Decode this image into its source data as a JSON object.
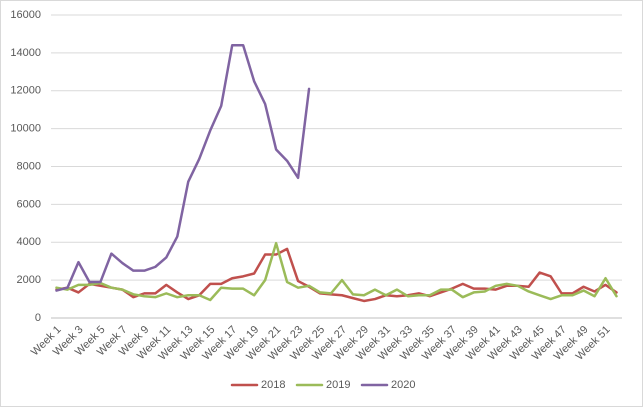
{
  "chart_data": {
    "type": "line",
    "categories": [
      "Week 1",
      null,
      "Week 3",
      null,
      "Week 5",
      null,
      "Week 7",
      null,
      "Week 9",
      null,
      "Week 11",
      null,
      "Week 13",
      null,
      "Week 15",
      null,
      "Week 17",
      null,
      "Week 19",
      null,
      "Week 21",
      null,
      "Week 23",
      null,
      "Week 25",
      null,
      "Week 27",
      null,
      "Week 29",
      null,
      "Week 31",
      null,
      "Week 33",
      null,
      "Week 35",
      null,
      "Week 37",
      null,
      "Week 39",
      null,
      "Week 41",
      null,
      "Week 43",
      null,
      "Week 45",
      null,
      "Week 47",
      null,
      "Week 49",
      null,
      "Week 51",
      null
    ],
    "series": [
      {
        "name": "2018",
        "color": "#c0504d",
        "values": [
          1500,
          1600,
          1350,
          1800,
          1700,
          1600,
          1500,
          1100,
          1300,
          1300,
          1750,
          1350,
          1000,
          1200,
          1800,
          1800,
          2100,
          2200,
          2350,
          3350,
          3350,
          3650,
          1950,
          1650,
          1300,
          1250,
          1200,
          1050,
          900,
          1000,
          1200,
          1150,
          1200,
          1300,
          1150,
          1350,
          1550,
          1800,
          1550,
          1550,
          1500,
          1700,
          1700,
          1650,
          2400,
          2200,
          1300,
          1300,
          1650,
          1400,
          1750,
          1350
        ]
      },
      {
        "name": "2019",
        "color": "#9bbb59",
        "values": [
          1600,
          1500,
          1750,
          1750,
          1850,
          1600,
          1500,
          1250,
          1150,
          1100,
          1300,
          1100,
          1200,
          1200,
          950,
          1600,
          1550,
          1550,
          1200,
          2000,
          3950,
          1900,
          1600,
          1700,
          1350,
          1300,
          2000,
          1250,
          1200,
          1500,
          1200,
          1500,
          1150,
          1200,
          1200,
          1500,
          1500,
          1100,
          1350,
          1400,
          1700,
          1800,
          1700,
          1400,
          1200,
          1000,
          1200,
          1200,
          1450,
          1150,
          2100,
          1150
        ]
      },
      {
        "name": "2020",
        "color": "#8064a2",
        "values": [
          1450,
          1600,
          2950,
          1900,
          1900,
          3400,
          2900,
          2500,
          2500,
          2700,
          3200,
          4300,
          7200,
          8400,
          9900,
          11200,
          14400,
          14400,
          12500,
          11300,
          8900,
          8300,
          7400,
          12100,
          null,
          null,
          null,
          null,
          null,
          null,
          null,
          null,
          null,
          null,
          null,
          null,
          null,
          null,
          null,
          null,
          null,
          null,
          null,
          null,
          null,
          null,
          null,
          null,
          null,
          null,
          null,
          null
        ]
      }
    ],
    "ylim": [
      0,
      16000
    ],
    "yticks": [
      0,
      2000,
      4000,
      6000,
      8000,
      10000,
      12000,
      14000,
      16000
    ],
    "grid": true,
    "legend": "bottom"
  }
}
